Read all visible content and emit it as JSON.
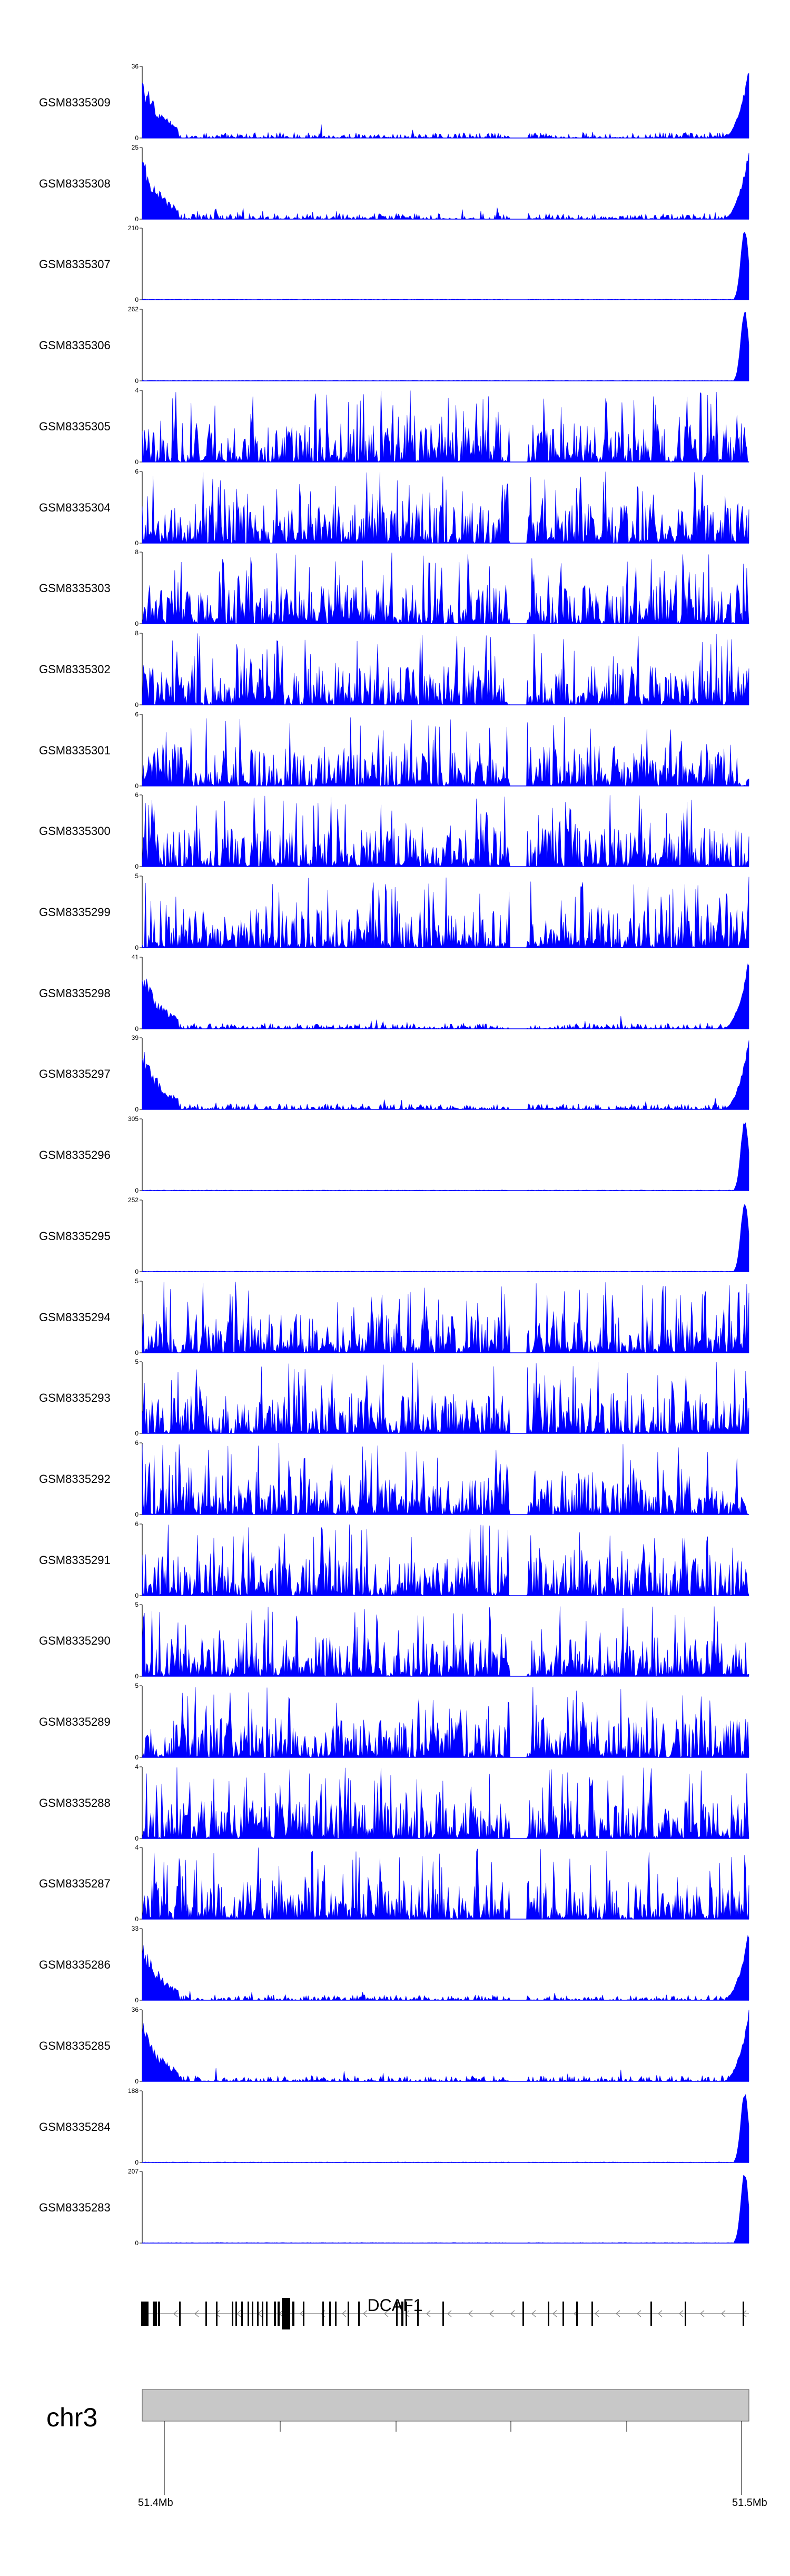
{
  "chart_data": {
    "type": "area",
    "tracks": [
      {
        "name": "GSM8335309",
        "ymax": 36,
        "profile": "enriched"
      },
      {
        "name": "GSM8335308",
        "ymax": 25,
        "profile": "enriched"
      },
      {
        "name": "GSM8335307",
        "ymax": 210,
        "profile": "peak"
      },
      {
        "name": "GSM8335306",
        "ymax": 262,
        "profile": "peak"
      },
      {
        "name": "GSM8335305",
        "ymax": 4,
        "profile": "noise"
      },
      {
        "name": "GSM8335304",
        "ymax": 6,
        "profile": "noise"
      },
      {
        "name": "GSM8335303",
        "ymax": 8,
        "profile": "noise"
      },
      {
        "name": "GSM8335302",
        "ymax": 8,
        "profile": "noise"
      },
      {
        "name": "GSM8335301",
        "ymax": 6,
        "profile": "noise"
      },
      {
        "name": "GSM8335300",
        "ymax": 6,
        "profile": "noise"
      },
      {
        "name": "GSM8335299",
        "ymax": 5,
        "profile": "noise"
      },
      {
        "name": "GSM8335298",
        "ymax": 41,
        "profile": "enriched"
      },
      {
        "name": "GSM8335297",
        "ymax": 39,
        "profile": "enriched"
      },
      {
        "name": "GSM8335296",
        "ymax": 305,
        "profile": "peak"
      },
      {
        "name": "GSM8335295",
        "ymax": 252,
        "profile": "peak"
      },
      {
        "name": "GSM8335294",
        "ymax": 5,
        "profile": "noise"
      },
      {
        "name": "GSM8335293",
        "ymax": 5,
        "profile": "noise"
      },
      {
        "name": "GSM8335292",
        "ymax": 6,
        "profile": "noise"
      },
      {
        "name": "GSM8335291",
        "ymax": 6,
        "profile": "noise"
      },
      {
        "name": "GSM8335290",
        "ymax": 5,
        "profile": "noise"
      },
      {
        "name": "GSM8335289",
        "ymax": 5,
        "profile": "noise"
      },
      {
        "name": "GSM8335288",
        "ymax": 4,
        "profile": "noise"
      },
      {
        "name": "GSM8335287",
        "ymax": 4,
        "profile": "noise"
      },
      {
        "name": "GSM8335286",
        "ymax": 33,
        "profile": "enriched"
      },
      {
        "name": "GSM8335285",
        "ymax": 36,
        "profile": "enriched"
      },
      {
        "name": "GSM8335284",
        "ymax": 188,
        "profile": "peak"
      },
      {
        "name": "GSM8335283",
        "ymax": 207,
        "profile": "peak"
      }
    ],
    "ymin": 0,
    "fill_color": "#0000ff",
    "gene": {
      "name": "DCAF1",
      "strand": "-",
      "color": "#000000"
    },
    "chromosome": "chr3",
    "x_axis": {
      "start_label": "51.4Mb",
      "end_label": "51.5Mb"
    },
    "ideogram_color": "#c8c8c8"
  }
}
